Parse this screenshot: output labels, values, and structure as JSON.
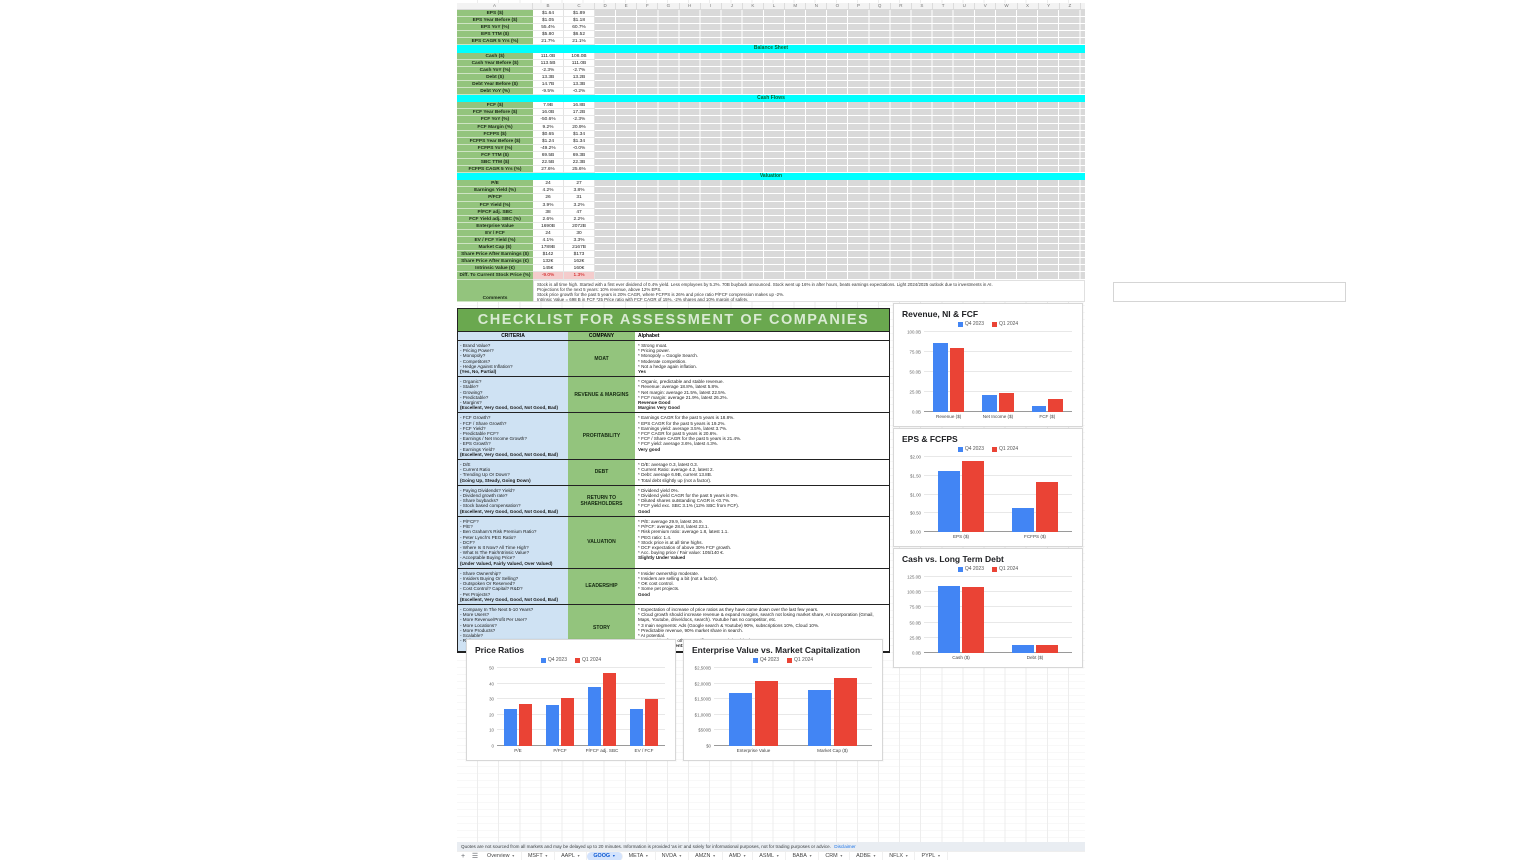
{
  "theme": {
    "label_green": "#93c47d",
    "section_cyan": "#00ffff",
    "criteria_blue": "#cfe2f3",
    "title_green": "#6aa84f",
    "title_text": "#d9ead3",
    "bar_blue": "#4285f4",
    "bar_red": "#ea4335",
    "negative_text": "#cc0000",
    "negative_bg": "#f4cccc"
  },
  "sheet": {
    "columns": [
      "A",
      "B",
      "C",
      "D",
      "E",
      "F",
      "G",
      "H",
      "I",
      "J",
      "K",
      "L",
      "M",
      "N",
      "O",
      "P",
      "Q",
      "R",
      "S",
      "T",
      "U",
      "V",
      "W",
      "X",
      "Y",
      "Z"
    ],
    "metrics": {
      "rows": [
        {
          "label": "EPS ($)",
          "q4": "$1.64",
          "q1": "$1.89"
        },
        {
          "label": "EPS Year Before ($)",
          "q4": "$1.05",
          "q1": "$1.18"
        },
        {
          "label": "EPS YoY (%)",
          "q4": "55.4%",
          "q1": "60.7%"
        },
        {
          "label": "EPS TTM ($)",
          "q4": "$5.80",
          "q1": "$6.52"
        },
        {
          "label": "EPS CAGR 5 Yrs (%)",
          "q4": "21.7%",
          "q1": "21.1%"
        },
        {
          "section": "Balance Sheet"
        },
        {
          "label": "Cash ($)",
          "q4": "111.0B",
          "q1": "108.0B"
        },
        {
          "label": "Cash Year Before ($)",
          "q4": "113.5B",
          "q1": "111.0B"
        },
        {
          "label": "Cash YoY (%)",
          "q4": "-2.3%",
          "q1": "-2.7%"
        },
        {
          "label": "Debt ($)",
          "q4": "13.3B",
          "q1": "13.2B"
        },
        {
          "label": "Debt Year Before ($)",
          "q4": "14.7B",
          "q1": "13.3B"
        },
        {
          "label": "Debt YoY (%)",
          "q4": "-9.5%",
          "q1": "-0.2%"
        },
        {
          "section": "Cash Flows"
        },
        {
          "label": "FCF ($)",
          "q4": "7.9B",
          "q1": "16.8B"
        },
        {
          "label": "FCF Year Before ($)",
          "q4": "16.0B",
          "q1": "17.2B"
        },
        {
          "label": "FCF YoY (%)",
          "q4": "-50.6%",
          "q1": "-2.3%"
        },
        {
          "label": "FCF Margin (%)",
          "q4": "9.2%",
          "q1": "20.9%"
        },
        {
          "label": "FCFPS ($)",
          "q4": "$0.65",
          "q1": "$1.34"
        },
        {
          "label": "FCFPS Year Before ($)",
          "q4": "$1.24",
          "q1": "$1.34"
        },
        {
          "label": "FCFPS YoY (%)",
          "q4": "-49.2%",
          "q1": "-0.0%"
        },
        {
          "label": "FCF TTM ($)",
          "q4": "69.5B",
          "q1": "69.3B"
        },
        {
          "label": "SBC TTM ($)",
          "q4": "22.5B",
          "q1": "22.3B"
        },
        {
          "label": "FCFPS CAGR 5 Yrs (%)",
          "q4": "27.6%",
          "q1": "25.6%"
        },
        {
          "section": "Valuation"
        },
        {
          "label": "P/E",
          "q4": "24",
          "q1": "27"
        },
        {
          "label": "Earnings Yield (%)",
          "q4": "4.2%",
          "q1": "3.8%"
        },
        {
          "label": "P/FCF",
          "q4": "26",
          "q1": "31"
        },
        {
          "label": "FCF Yield (%)",
          "q4": "3.9%",
          "q1": "3.2%"
        },
        {
          "label": "P/FCF adj. SBC",
          "q4": "38",
          "q1": "47"
        },
        {
          "label": "FCF Yield adj. SBC (%)",
          "q4": "2.6%",
          "q1": "2.2%"
        },
        {
          "label": "Enterprise Value",
          "q4": "1690B",
          "q1": "2072B"
        },
        {
          "label": "EV / FCF",
          "q4": "24",
          "q1": "30"
        },
        {
          "label": "EV / FCF Yield (%)",
          "q4": "4.1%",
          "q1": "3.3%"
        },
        {
          "label": "Market Cap ($)",
          "q4": "1789B",
          "q1": "2167B"
        },
        {
          "label": "Share Price After Earnings ($)",
          "q4": "$142",
          "q1": "$173"
        },
        {
          "label": "Share Price After Earnings (€)",
          "q4": "132€",
          "q1": "162€"
        },
        {
          "label": "Intrinsic Value (€)",
          "q4": "145€",
          "q1": "160€"
        },
        {
          "label": "Diff. To Current Stock Price (%)",
          "q4": "-9.0%",
          "q1": "1.3%",
          "negative": true
        }
      ],
      "comments": {
        "label": "Comments",
        "lines": [
          "Stock is all time high. Started with a first ever dividend of 0.4% yield. Less employees by 5.2%. 70B buyback announced. Stock went up 16% in after hours, beats earnings expectations. Light 2024/2025 outlook due to investments in AI.",
          "Projections for the next 5 years: 10% revenue, above 12% EPS.",
          "Stock price growth for the past 5 years is 20% CAGR, where FCFPS is 26% and price ratio P/FCF compression makes up -2%.",
          "Intrinsic Value = 698 B in FCF *25 Price ratio with FCF CAGR of 15%, -2% shares and 10% margin of safety."
        ]
      }
    }
  },
  "checklist": {
    "title": "CHECKLIST FOR ASSESSMENT OF COMPANIES",
    "headers": [
      "CRITERIA",
      "COMPANY",
      "Alphabet"
    ],
    "rows": [
      {
        "category": "MOAT",
        "criteria": [
          "- Brand Value?",
          "- Pricing Power?",
          "- Monopoly?",
          "- Competitors?",
          "- Hedge Against Inflation?"
        ],
        "scale": "(Yes, No, Partial)",
        "notes": [
          "* Strong moat.",
          "* Pricing power.",
          "* Monopoly = Google Search.",
          "* Moderate competition.",
          "* Not a hedge again inflation."
        ],
        "verdict": [
          "Yes"
        ]
      },
      {
        "category": "REVENUE & MARGINS",
        "criteria": [
          "- Organic?",
          "- Stable?",
          "- Growing?",
          "- Predictable?",
          "- Margins?"
        ],
        "scale": "(Excellent, Very Good, Good, Not Good, Bad)",
        "notes": [
          "* Organic, predictable and stable revenue.",
          "* Revenue: average 18.8%, latest 5.8%.",
          "* Net margin: average 21.5%, latest 22.5%.",
          "* FCF margin: average 21.9%, latest 26.2%."
        ],
        "verdict": [
          "Revenue Good",
          "Margins Very Good"
        ]
      },
      {
        "category": "PROFITABILITY",
        "criteria": [
          "- FCF Growth?",
          "- FCF / Share Growth?",
          "- FCF Yield?",
          "- Predictable FCF?",
          "- Earnings / Net Income Growth?",
          "- EPS Growth?",
          "- Earnings Yield?"
        ],
        "scale": "(Excellent, Very Good, Good, Not Good, Bad)",
        "notes": [
          "* Earnings CAGR for the past 5 years is 18.8%.",
          "* EPS CAGR for the past 5 years is 19.2%.",
          "* Earnings yield: average 3.5%, latest 3.7%.",
          "* FCF CAGR for past 5 years is 20.6%.",
          "* FCF / Share CAGR for the past 5 years is 21.4%.",
          "* FCF yield: average 3.6%, latest 4.3%."
        ],
        "verdict": [
          "Very good"
        ]
      },
      {
        "category": "DEBT",
        "criteria": [
          "- D/E",
          "- Current Ratio",
          "- Trending Up Or Down?"
        ],
        "scale": "(Going Up, Steady, Going Down)",
        "notes": [
          "* D/E: average 0.3, latest 0.3.",
          "* Current Ratio: average 4.2, latest 2.",
          "* Debt: average 6.9B, current 13.8B.",
          "* Total debt slightly up (not a factor)."
        ],
        "verdict": []
      },
      {
        "category": "RETURN TO SHAREHOLDERS",
        "criteria": [
          "- Paying Dividends? Yield?",
          "- Dividend growth rate?",
          "- Share buybacks?",
          "- Stock based compensation?"
        ],
        "scale": "(Excellent, Very Good, Good, Not Good, Bad)",
        "notes": [
          "* Dividend yield 0%.",
          "* Dividend yield CAGR for the past 5 years is 0%.",
          "* Diluted shares outstanding CAGR is <0.7%.",
          "* FCF yield exc. SBC 3.1% (12% SBC from FCF)."
        ],
        "verdict": [
          "Good"
        ]
      },
      {
        "category": "VALUATION",
        "criteria": [
          "- P/FCF?",
          "- P/E?",
          "- Ben Graham's Risk Premium Ratio?",
          "- Peter Lynch's PEG Ratio?",
          "- DCF?",
          "- Where Is It Now? All Time High?",
          "- What Is The Fair/Intrinsic Value?",
          "- Acceptable Buying Price?"
        ],
        "scale": "(Under Valued, Fairly Valued, Over Valued)",
        "notes": [
          "* P/E: average 29.9, latest 26.9.",
          "* P/FCF: average 28.8, latest 23.1.",
          "* Risk premium ratio: average 1.8, latest 1.1.",
          "* PEG ratio: 1.4.",
          "* Stock price is at all time highs.",
          "* DCF expectation of above 30% FCF growth.",
          "* Acc. buying price / Fair value: 105/140 €."
        ],
        "verdict": [
          "Slightly Under Valued"
        ]
      },
      {
        "category": "LEADERSHIP",
        "criteria": [
          "- Share Ownership?",
          "- Insiders Buying Or Selling?",
          "- Outspoken Or Reserved?",
          "- Cost Control? Capital? R&D?",
          "- Pet Projects?"
        ],
        "scale": "(Excellent, Very Good, Good, Not Good, Bad)",
        "notes": [
          "* Insider ownership moderate.",
          "* Insiders are selling a bit (not a factor).",
          "* OK cost control.",
          "* Some pet projects."
        ],
        "verdict": [
          "Good"
        ]
      },
      {
        "category": "STORY",
        "criteria": [
          "- Company In The Next 5-10 Years?",
          "- More Users?",
          "- More Revenue/Profit Per User?",
          "- More Locations?",
          "- More Products?",
          "- Scalable?",
          "- Risks?"
        ],
        "scale": "",
        "notes": [
          "* Expectation of increase of price ratios as they have come down over the last few years.",
          "* Cloud growth should increase revenue & expand margins, search not losing market share, AI incorporation (Gmail, Maps, Youtube, drive/docs, search). Youtube has no competitor, etc.",
          "* 3 main segments: Ads (Google search & Youtube) 90%, subscriptions 10%, Cloud 10%.",
          "* Predictable revenue, 90% market share in search.",
          "* AI potential.",
          "* Competition from other magnificent seven (Cloud / AI)."
        ],
        "verdict": [
          "Current assessment: slightly under valued, great business, reoccurring revenue, keep & add."
        ]
      }
    ]
  },
  "chart_data": [
    {
      "type": "bar",
      "title": "Revenue, NI & FCF",
      "legend_position": "top",
      "categories": [
        "Revenue ($)",
        "Net Income ($)",
        "FCF ($)"
      ],
      "series": [
        {
          "name": "Q4 2023",
          "values": [
            86.3,
            20.7,
            7.9
          ]
        },
        {
          "name": "Q1 2024",
          "values": [
            80.5,
            23.7,
            16.8
          ]
        }
      ],
      "ylim": [
        0,
        100
      ],
      "yticks": [
        "0.0B",
        "25.0B",
        "50.0B",
        "75.0B",
        "100.0B"
      ],
      "grid": true
    },
    {
      "type": "bar",
      "title": "EPS & FCFPS",
      "legend_position": "top",
      "categories": [
        "EPS ($)",
        "FCFPS ($)"
      ],
      "series": [
        {
          "name": "Q4 2023",
          "values": [
            1.64,
            0.65
          ]
        },
        {
          "name": "Q1 2024",
          "values": [
            1.89,
            1.34
          ]
        }
      ],
      "ylim": [
        0,
        2
      ],
      "yticks": [
        "$0.00",
        "$0.50",
        "$1.00",
        "$1.50",
        "$2.00"
      ],
      "grid": true
    },
    {
      "type": "bar",
      "title": "Cash vs. Long Term Debt",
      "legend_position": "top",
      "categories": [
        "Cash ($)",
        "Debt ($)"
      ],
      "series": [
        {
          "name": "Q4 2023",
          "values": [
            111.0,
            13.3
          ]
        },
        {
          "name": "Q1 2024",
          "values": [
            108.0,
            13.2
          ]
        }
      ],
      "ylim": [
        0,
        125
      ],
      "yticks": [
        "0.0B",
        "25.0B",
        "50.0B",
        "75.0B",
        "100.0B",
        "125.0B"
      ],
      "grid": true
    },
    {
      "type": "bar",
      "title": "Price Ratios",
      "legend_position": "top",
      "categories": [
        "P/E",
        "P/FCF",
        "P/FCF adj. SBC",
        "EV / FCF"
      ],
      "series": [
        {
          "name": "Q4 2023",
          "values": [
            24,
            26,
            38,
            24
          ]
        },
        {
          "name": "Q1 2024",
          "values": [
            27,
            31,
            47,
            30
          ]
        }
      ],
      "ylim": [
        0,
        50
      ],
      "yticks": [
        "0",
        "10",
        "20",
        "30",
        "40",
        "50"
      ],
      "grid": true
    },
    {
      "type": "bar",
      "title": "Enterprise Value vs. Market Capitalization",
      "legend_position": "top",
      "categories": [
        "Enterprise Value",
        "Market Cap ($)"
      ],
      "series": [
        {
          "name": "Q4 2023",
          "values": [
            1690,
            1789
          ]
        },
        {
          "name": "Q1 2024",
          "values": [
            2072,
            2167
          ]
        }
      ],
      "ylim": [
        0,
        2500
      ],
      "yticks": [
        "$0",
        "$500B",
        "$1,000B",
        "$1,500B",
        "$2,000B",
        "$2,500B"
      ],
      "grid": true
    }
  ],
  "footer": {
    "disclaimer": "Quotes are not sourced from all markets and may be delayed up to 20 minutes. Information is provided 'as is' and solely for informational purposes, not for trading purposes or advice.",
    "disclaimer_link": "Disclaimer",
    "tabs": [
      "Overview",
      "MSFT",
      "AAPL",
      "GOOG",
      "META",
      "NVDA",
      "AMZN",
      "AMD",
      "ASML",
      "BABA",
      "CRM",
      "ADBE",
      "NFLX",
      "PYPL"
    ],
    "active_tab": "GOOG"
  }
}
